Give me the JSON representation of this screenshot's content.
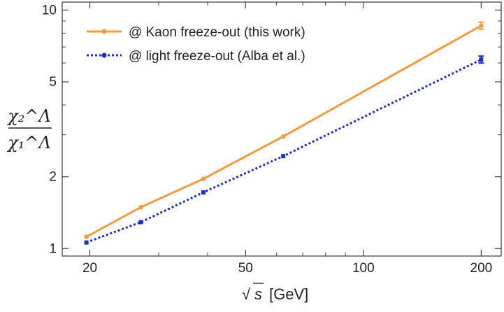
{
  "chart_data": {
    "type": "line",
    "xscale": "log",
    "yscale": "log",
    "xlim": [
      17,
      225
    ],
    "ylim": [
      0.93,
      10.8
    ],
    "x_ticks": [
      20,
      50,
      100,
      200
    ],
    "x_tick_labels": [
      "20",
      "50",
      "100",
      "200"
    ],
    "y_ticks": [
      1,
      2,
      5,
      10
    ],
    "y_tick_labels": [
      "1",
      "2",
      "5",
      "10"
    ],
    "ylabel": {
      "numerator": "χ₂^Λ",
      "denominator": "χ₁^Λ"
    },
    "xlabel": {
      "sqrt_symbol": "√",
      "variable": "s",
      "unit": "[GeV]"
    },
    "legend_position": "top-left",
    "grid": false,
    "series": [
      {
        "name": "@ Kaon freeze-out (this work)",
        "color": "#f59a3e",
        "style": "solid",
        "x": [
          19.6,
          27,
          39,
          62.4,
          200
        ],
        "y": [
          1.12,
          1.49,
          1.96,
          2.95,
          8.6
        ]
      },
      {
        "name": "@ light freeze-out (Alba et al.)",
        "color": "#1f2fbf",
        "style": "dotted",
        "x": [
          19.6,
          27,
          39,
          62.4,
          200
        ],
        "y": [
          1.06,
          1.29,
          1.72,
          2.44,
          6.2
        ]
      }
    ]
  }
}
